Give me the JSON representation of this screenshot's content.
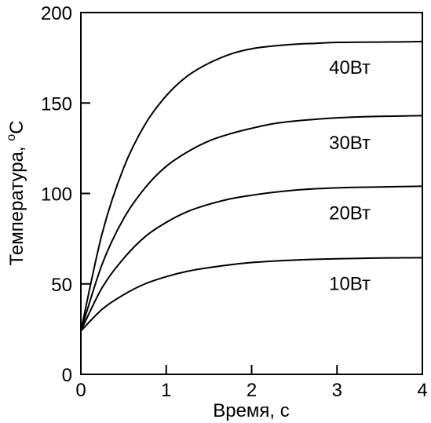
{
  "chart_data": {
    "type": "line",
    "xlabel": "Время, с",
    "ylabel_main": "Температура, ",
    "ylabel_sup": "o",
    "ylabel_unit": "C",
    "xlim": [
      0,
      4
    ],
    "ylim": [
      0,
      200
    ],
    "x_ticks": [
      0,
      1,
      2,
      3,
      4
    ],
    "y_ticks": [
      0,
      50,
      100,
      150,
      200
    ],
    "x_tick_labels": [
      "0",
      "1",
      "2",
      "3",
      "4"
    ],
    "y_tick_labels": [
      "0",
      "50",
      "100",
      "150",
      "200"
    ],
    "grid": false,
    "x": [
      0,
      0.25,
      0.5,
      0.75,
      1,
      1.25,
      1.5,
      1.75,
      2,
      2.25,
      2.5,
      2.75,
      3,
      3.25,
      3.5,
      3.75,
      4
    ],
    "series": [
      {
        "name": "40Вт",
        "values": [
          24,
          78,
          114,
          138,
          154,
          165,
          172,
          177,
          180,
          181.5,
          182.5,
          183,
          183.5,
          183.6,
          183.7,
          183.8,
          184
        ]
      },
      {
        "name": "30Вт",
        "values": [
          24,
          61,
          86,
          103,
          115,
          123,
          129,
          133,
          136,
          138.5,
          140,
          141,
          141.8,
          142.3,
          142.6,
          142.8,
          143
        ]
      },
      {
        "name": "20Вт",
        "values": [
          24,
          48,
          64,
          76,
          84,
          90,
          94,
          97,
          99,
          100.6,
          101.8,
          102.6,
          103.1,
          103.4,
          103.6,
          103.8,
          104
        ]
      },
      {
        "name": "10Вт",
        "values": [
          24,
          36,
          44,
          50,
          54,
          57,
          59,
          60.6,
          61.8,
          62.6,
          63.2,
          63.6,
          63.9,
          64.1,
          64.3,
          64.4,
          64.5
        ]
      }
    ]
  }
}
